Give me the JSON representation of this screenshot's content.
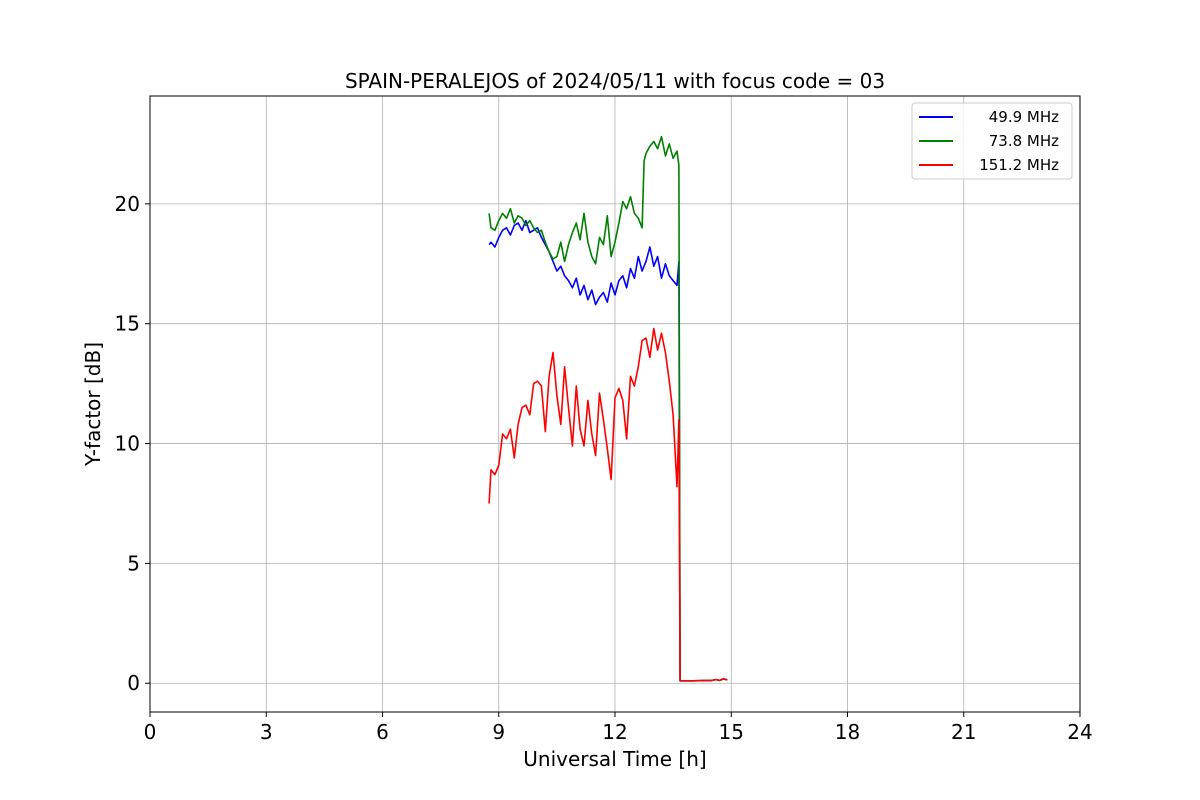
{
  "chart_data": {
    "type": "line",
    "title": "SPAIN-PERALEJOS of 2024/05/11 with focus code = 03",
    "xlabel": "Universal Time [h]",
    "ylabel": "Y-factor [dB]",
    "xlim": [
      0,
      24
    ],
    "ylim": [
      -1.2,
      24.5
    ],
    "xticks": [
      0,
      3,
      6,
      9,
      12,
      15,
      18,
      21,
      24
    ],
    "yticks": [
      0,
      5,
      10,
      15,
      20
    ],
    "grid": true,
    "legend_position": "top-right",
    "series": [
      {
        "name": "49.9 MHz",
        "color": "#0000ff",
        "x": [
          8.75,
          8.8,
          8.9,
          9.0,
          9.1,
          9.2,
          9.3,
          9.4,
          9.5,
          9.6,
          9.7,
          9.8,
          9.9,
          10.0,
          10.1,
          10.2,
          10.3,
          10.4,
          10.5,
          10.6,
          10.7,
          10.8,
          10.9,
          11.0,
          11.1,
          11.2,
          11.3,
          11.4,
          11.5,
          11.6,
          11.7,
          11.8,
          11.9,
          12.0,
          12.1,
          12.2,
          12.3,
          12.4,
          12.5,
          12.6,
          12.7,
          12.8,
          12.9,
          13.0,
          13.1,
          13.2,
          13.3,
          13.4,
          13.5,
          13.6,
          13.65,
          13.68,
          13.7,
          14.0,
          14.5,
          14.6,
          14.7,
          14.8,
          14.9
        ],
        "y": [
          18.3,
          18.4,
          18.2,
          18.6,
          18.9,
          19.0,
          18.7,
          19.1,
          19.2,
          18.9,
          19.3,
          18.8,
          18.9,
          19.0,
          18.6,
          18.3,
          18.0,
          17.6,
          17.2,
          17.4,
          17.0,
          16.8,
          16.5,
          16.9,
          16.2,
          16.6,
          16.0,
          16.4,
          15.8,
          16.1,
          16.3,
          15.9,
          16.7,
          16.2,
          16.8,
          17.0,
          16.5,
          17.3,
          16.9,
          17.8,
          17.2,
          17.6,
          18.2,
          17.4,
          17.8,
          16.9,
          17.5,
          17.0,
          16.8,
          16.6,
          17.6,
          0.1,
          0.1,
          0.1,
          0.12,
          0.15,
          0.12,
          0.18,
          0.14
        ]
      },
      {
        "name": "73.8 MHz",
        "color": "#008000",
        "x": [
          8.75,
          8.8,
          8.9,
          9.0,
          9.1,
          9.2,
          9.3,
          9.4,
          9.5,
          9.6,
          9.7,
          9.8,
          9.9,
          10.0,
          10.1,
          10.2,
          10.3,
          10.4,
          10.5,
          10.6,
          10.7,
          10.8,
          10.9,
          11.0,
          11.1,
          11.2,
          11.3,
          11.4,
          11.5,
          11.6,
          11.7,
          11.8,
          11.9,
          12.0,
          12.1,
          12.2,
          12.3,
          12.4,
          12.5,
          12.6,
          12.7,
          12.75,
          12.8,
          12.9,
          13.0,
          13.1,
          13.2,
          13.3,
          13.4,
          13.5,
          13.6,
          13.65,
          13.68,
          13.7,
          14.0,
          14.5,
          14.6,
          14.7,
          14.8,
          14.9
        ],
        "y": [
          19.6,
          19.0,
          18.9,
          19.3,
          19.6,
          19.4,
          19.8,
          19.2,
          19.5,
          19.4,
          19.1,
          19.3,
          19.0,
          18.8,
          18.9,
          18.4,
          18.0,
          17.7,
          17.8,
          18.4,
          17.6,
          18.3,
          18.8,
          19.2,
          18.5,
          19.6,
          18.4,
          17.8,
          17.5,
          18.6,
          18.3,
          19.5,
          17.8,
          18.4,
          19.2,
          20.1,
          19.8,
          20.3,
          19.6,
          19.4,
          19.0,
          21.8,
          22.1,
          22.4,
          22.6,
          22.3,
          22.8,
          22.0,
          22.5,
          21.9,
          22.2,
          21.6,
          0.1,
          0.1,
          0.1,
          0.12,
          0.15,
          0.12,
          0.18,
          0.14
        ]
      },
      {
        "name": "151.2 MHz",
        "color": "#ff0000",
        "x": [
          8.75,
          8.8,
          8.9,
          9.0,
          9.1,
          9.2,
          9.3,
          9.4,
          9.5,
          9.6,
          9.7,
          9.8,
          9.9,
          10.0,
          10.1,
          10.2,
          10.3,
          10.4,
          10.5,
          10.6,
          10.7,
          10.8,
          10.9,
          11.0,
          11.1,
          11.2,
          11.3,
          11.4,
          11.5,
          11.6,
          11.7,
          11.8,
          11.9,
          12.0,
          12.1,
          12.2,
          12.3,
          12.4,
          12.5,
          12.6,
          12.7,
          12.8,
          12.9,
          13.0,
          13.1,
          13.2,
          13.3,
          13.4,
          13.5,
          13.6,
          13.65,
          13.68,
          13.7,
          14.0,
          14.5,
          14.6,
          14.7,
          14.8,
          14.9
        ],
        "y": [
          7.5,
          8.9,
          8.7,
          9.1,
          10.4,
          10.2,
          10.6,
          9.4,
          10.8,
          11.5,
          11.6,
          11.2,
          12.5,
          12.6,
          12.4,
          10.5,
          12.8,
          13.8,
          12.0,
          10.8,
          13.2,
          11.5,
          9.9,
          12.4,
          10.6,
          9.9,
          11.8,
          10.4,
          9.5,
          12.1,
          11.0,
          9.8,
          8.5,
          11.9,
          12.3,
          11.8,
          10.2,
          12.8,
          12.4,
          13.2,
          14.3,
          14.4,
          13.6,
          14.8,
          13.9,
          14.6,
          13.8,
          12.6,
          11.2,
          8.2,
          11.0,
          0.1,
          0.1,
          0.1,
          0.12,
          0.15,
          0.12,
          0.18,
          0.14
        ]
      }
    ]
  }
}
